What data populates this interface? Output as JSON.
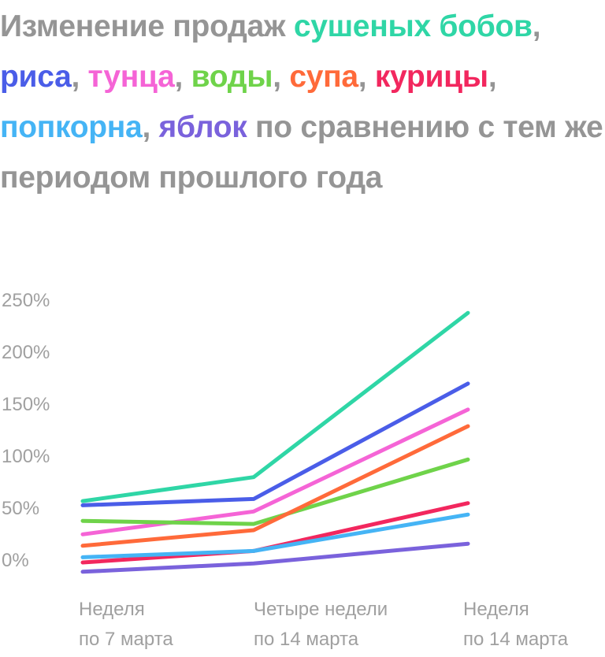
{
  "title_parts": [
    {
      "text": "Изменение продаж ",
      "color": "#959595"
    },
    {
      "text": "сушеных бобов",
      "color": "#2fd6a6"
    },
    {
      "text": ", ",
      "color": "#959595"
    },
    {
      "text": "риса",
      "color": "#4a5de8"
    },
    {
      "text": ", ",
      "color": "#959595"
    },
    {
      "text": "тунца",
      "color": "#f564d6"
    },
    {
      "text": ", ",
      "color": "#959595"
    },
    {
      "text": "воды",
      "color": "#6fd34a"
    },
    {
      "text": ", ",
      "color": "#959595"
    },
    {
      "text": "супа",
      "color": "#ff6a3a"
    },
    {
      "text": ", ",
      "color": "#959595"
    },
    {
      "text": "курицы",
      "color": "#f2275e"
    },
    {
      "text": ", ",
      "color": "#959595"
    },
    {
      "text": "попкорна",
      "color": "#45b4f5"
    },
    {
      "text": ", ",
      "color": "#959595"
    },
    {
      "text": "яблок",
      "color": "#7a62dc"
    },
    {
      "text": " по сравнению с тем же периодом прошлого года",
      "color": "#959595"
    }
  ],
  "chart_data": {
    "type": "line",
    "x": [
      [
        "Неделя",
        "по 7 марта"
      ],
      [
        "Четыре недели",
        "по 14 марта"
      ],
      [
        "Неделя",
        "по 14 марта"
      ]
    ],
    "ylim": [
      0,
      250
    ],
    "yticks": [
      0,
      50,
      100,
      150,
      200,
      250
    ],
    "ytick_labels": [
      "0%",
      "50%",
      "100%",
      "150%",
      "200%",
      "250%"
    ],
    "grid": false,
    "series": [
      {
        "name": "сушеных бобов",
        "color": "#2fd6a6",
        "values": [
          56,
          79,
          237
        ]
      },
      {
        "name": "риса",
        "color": "#4a5de8",
        "values": [
          52,
          58,
          169
        ]
      },
      {
        "name": "тунца",
        "color": "#f564d6",
        "values": [
          24,
          46,
          144
        ]
      },
      {
        "name": "воды",
        "color": "#6fd34a",
        "values": [
          37,
          34,
          96
        ]
      },
      {
        "name": "супа",
        "color": "#ff6a3a",
        "values": [
          13,
          28,
          128
        ]
      },
      {
        "name": "курицы",
        "color": "#f2275e",
        "values": [
          -3,
          8,
          54
        ]
      },
      {
        "name": "попкорна",
        "color": "#45b4f5",
        "values": [
          2,
          8,
          43
        ]
      },
      {
        "name": "яблок",
        "color": "#7a62dc",
        "values": [
          -12,
          -4,
          15
        ]
      }
    ]
  }
}
